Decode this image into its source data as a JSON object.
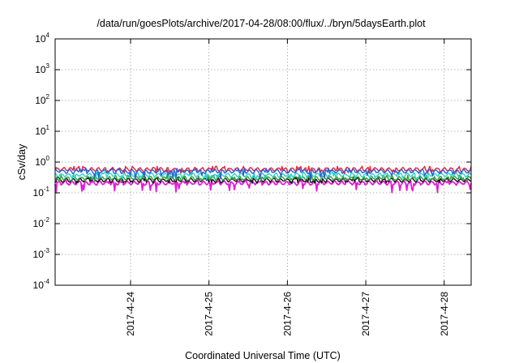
{
  "chart_data": {
    "type": "line",
    "title": "/data/run/goesPlots/archive/2017-04-28/08:00/flux/../bryn/5daysEarth.plot",
    "xlabel": "Coordinated Universal Time (UTC)",
    "ylabel": "cSv/day",
    "y_scale": "log",
    "ylim": [
      0.0001,
      10000
    ],
    "y_ticks": [
      {
        "base": "10",
        "exp": "-4",
        "value": 0.0001
      },
      {
        "base": "10",
        "exp": "-3",
        "value": 0.001
      },
      {
        "base": "10",
        "exp": "-2",
        "value": 0.01
      },
      {
        "base": "10",
        "exp": "-1",
        "value": 0.1
      },
      {
        "base": "10",
        "exp": "0",
        "value": 1
      },
      {
        "base": "10",
        "exp": "1",
        "value": 10
      },
      {
        "base": "10",
        "exp": "2",
        "value": 100
      },
      {
        "base": "10",
        "exp": "3",
        "value": 1000
      },
      {
        "base": "10",
        "exp": "4",
        "value": 10000
      }
    ],
    "xlim": [
      "2017-04-23 00:55",
      "2017-04-28 08:15"
    ],
    "x_ticks": [
      "2017-4-24",
      "2017-4-25",
      "2017-4-26",
      "2017-4-27",
      "2017-4-28"
    ],
    "grid": true,
    "series": [
      {
        "color": "#e8222e",
        "typical": 0.58,
        "dip": 0.42
      },
      {
        "color": "#2a5be0",
        "typical": 0.5,
        "dip": 0.28
      },
      {
        "color": "#25d4c8",
        "typical": 0.38,
        "dip": 0.27
      },
      {
        "color": "#2d9e3a",
        "typical": 0.3,
        "dip": 0.24
      },
      {
        "color": "#111111",
        "typical": 0.26,
        "dip": 0.2
      },
      {
        "color": "#e81ad8",
        "typical": 0.21,
        "dip": 0.1
      }
    ]
  }
}
